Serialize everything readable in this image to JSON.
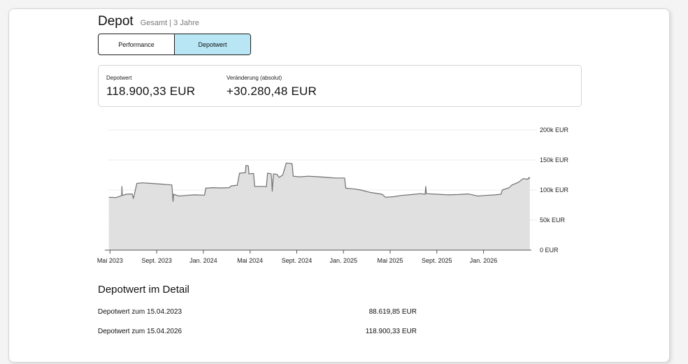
{
  "header": {
    "title": "Depot",
    "subtitle": "Gesamt | 3 Jahre"
  },
  "tabs": [
    {
      "label": "Performance",
      "active": false
    },
    {
      "label": "Depotwert",
      "active": true
    }
  ],
  "summary": {
    "value_label": "Depotwert",
    "value": "118.900,33 EUR",
    "change_label": "Veränderung (absolut)",
    "change": "+30.280,48 EUR"
  },
  "colors": {
    "accent": "#b8e6f5",
    "area_fill": "#e0e0e0",
    "line": "#6f6f6f"
  },
  "chart_data": {
    "type": "area",
    "title": "",
    "xlabel": "",
    "ylabel": "",
    "ylim": [
      0,
      200000
    ],
    "y_ticks": [
      {
        "value": 200000,
        "label": "200k EUR"
      },
      {
        "value": 150000,
        "label": "150k EUR"
      },
      {
        "value": 100000,
        "label": "100k EUR"
      },
      {
        "value": 50000,
        "label": "50k EUR"
      },
      {
        "value": 0,
        "label": "0 EUR"
      }
    ],
    "x_ticks": [
      {
        "month": 0,
        "label": "Mai 2023"
      },
      {
        "month": 4,
        "label": "Sept. 2023"
      },
      {
        "month": 8,
        "label": "Jan. 2024"
      },
      {
        "month": 12,
        "label": "Mai 2024"
      },
      {
        "month": 16,
        "label": "Sept. 2024"
      },
      {
        "month": 20,
        "label": "Jan. 2025"
      },
      {
        "month": 24,
        "label": "Mai 2025"
      },
      {
        "month": 28,
        "label": "Sept. 2025"
      },
      {
        "month": 32,
        "label": "Jan. 2026"
      }
    ],
    "x_unit": "months since May 2023",
    "grid": true,
    "legend": "none",
    "series": [
      {
        "values": [
          [
            -0.1,
            88000
          ],
          [
            0.5,
            87500
          ],
          [
            0.9,
            90000
          ],
          [
            1.0,
            91000
          ],
          [
            1.02,
            106000
          ],
          [
            1.05,
            91000
          ],
          [
            1.4,
            93000
          ],
          [
            1.9,
            93500
          ],
          [
            2.0,
            86000
          ],
          [
            2.1,
            94000
          ],
          [
            2.3,
            111000
          ],
          [
            2.8,
            112000
          ],
          [
            3.5,
            111000
          ],
          [
            4.3,
            110000
          ],
          [
            5.0,
            109000
          ],
          [
            5.3,
            108500
          ],
          [
            5.4,
            81000
          ],
          [
            5.45,
            93000
          ],
          [
            5.9,
            90000
          ],
          [
            6.5,
            91000
          ],
          [
            7.2,
            92000
          ],
          [
            8.1,
            91500
          ],
          [
            8.2,
            103000
          ],
          [
            8.8,
            104000
          ],
          [
            9.5,
            103500
          ],
          [
            10.2,
            104000
          ],
          [
            10.4,
            107000
          ],
          [
            10.9,
            108000
          ],
          [
            11.1,
            128000
          ],
          [
            11.6,
            129000
          ],
          [
            11.65,
            141000
          ],
          [
            11.85,
            140000
          ],
          [
            11.9,
            127000
          ],
          [
            12.3,
            127500
          ],
          [
            12.4,
            106000
          ],
          [
            13.1,
            106000
          ],
          [
            13.4,
            105500
          ],
          [
            13.5,
            128000
          ],
          [
            13.8,
            127000
          ],
          [
            13.85,
            118000
          ],
          [
            13.9,
            98000
          ],
          [
            14.0,
            127000
          ],
          [
            14.3,
            126000
          ],
          [
            14.5,
            121000
          ],
          [
            14.8,
            125000
          ],
          [
            15.1,
            145000
          ],
          [
            15.6,
            144000
          ],
          [
            15.7,
            123000
          ],
          [
            16.2,
            122000
          ],
          [
            17.0,
            123000
          ],
          [
            18.0,
            122000
          ],
          [
            18.6,
            121000
          ],
          [
            19.3,
            120000
          ],
          [
            20.1,
            120000
          ],
          [
            20.2,
            103000
          ],
          [
            20.9,
            102000
          ],
          [
            21.5,
            100000
          ],
          [
            22.3,
            96000
          ],
          [
            23.3,
            93000
          ],
          [
            23.6,
            88000
          ],
          [
            24.3,
            89000
          ],
          [
            25.0,
            91000
          ],
          [
            25.9,
            92500
          ],
          [
            26.6,
            94000
          ],
          [
            27.0,
            93000
          ],
          [
            27.05,
            106000
          ],
          [
            27.1,
            94000
          ],
          [
            28.0,
            93000
          ],
          [
            29.0,
            92000
          ],
          [
            29.9,
            92500
          ],
          [
            30.7,
            93500
          ],
          [
            31.5,
            90000
          ],
          [
            32.2,
            91000
          ],
          [
            33.0,
            92000
          ],
          [
            33.5,
            93000
          ],
          [
            33.6,
            100000
          ],
          [
            34.2,
            104000
          ],
          [
            34.4,
            108000
          ],
          [
            35.0,
            113000
          ],
          [
            35.4,
            119000
          ],
          [
            35.8,
            118000
          ],
          [
            35.9,
            121000
          ],
          [
            35.97,
            118900
          ]
        ]
      }
    ]
  },
  "details": {
    "title": "Depotwert im Detail",
    "rows": [
      {
        "label": "Depotwert zum 15.04.2023",
        "value": "88.619,85 EUR"
      },
      {
        "label": "Depotwert zum 15.04.2026",
        "value": "118.900,33 EUR"
      }
    ]
  }
}
